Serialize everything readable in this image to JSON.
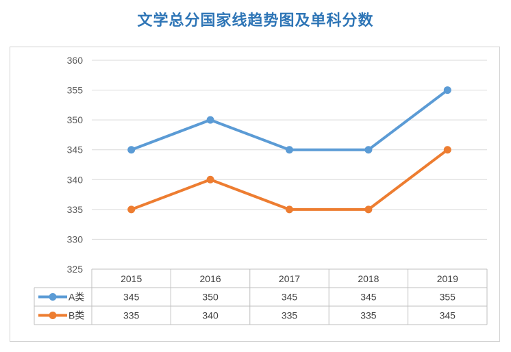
{
  "title": "文学总分国家线趋势图及单科分数",
  "chart_data": {
    "type": "line",
    "title": "文学总分国家线趋势图及单科分数",
    "categories": [
      "2015",
      "2016",
      "2017",
      "2018",
      "2019"
    ],
    "series": [
      {
        "name": "A类",
        "values": [
          345,
          350,
          345,
          345,
          355
        ],
        "color": "#5b9bd5"
      },
      {
        "name": "B类",
        "values": [
          335,
          340,
          335,
          335,
          345
        ],
        "color": "#ed7d31"
      }
    ],
    "ylim": [
      325,
      360
    ],
    "yticks": [
      360,
      355,
      350,
      345,
      340,
      335,
      330,
      325
    ],
    "grid": true,
    "legend": "data-table-left",
    "data_table": true
  }
}
